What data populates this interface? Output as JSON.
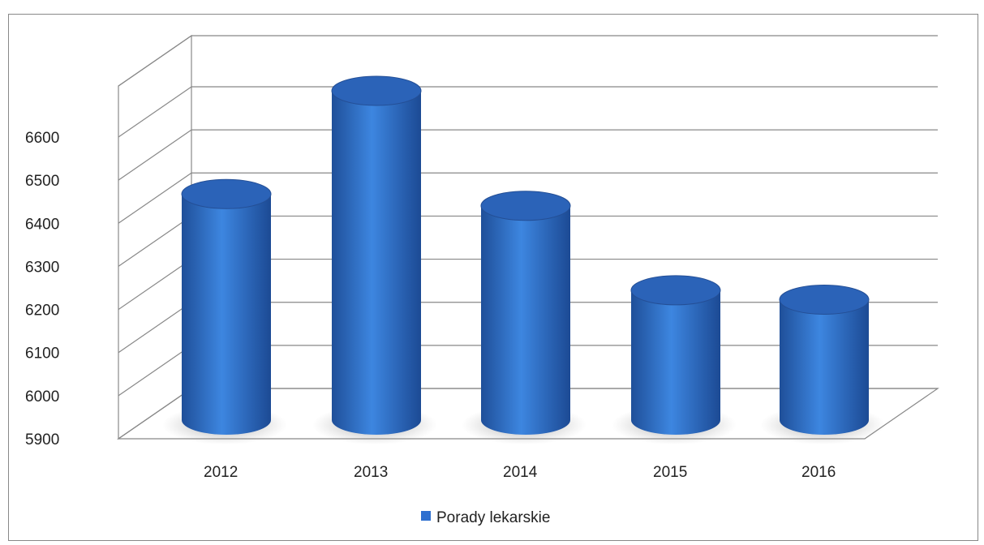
{
  "caption": "",
  "chart_data": {
    "type": "bar",
    "style": "3d-cylinder",
    "categories": [
      "2012",
      "2013",
      "2014",
      "2015",
      "2016"
    ],
    "series": [
      {
        "name": "Porady lekarskie",
        "values": [
          6380,
          6600,
          6355,
          6175,
          6155
        ],
        "color": "#2e6fcf"
      }
    ],
    "ylim": [
      5900,
      6600
    ],
    "yticks": [
      "5900",
      "6000",
      "6100",
      "6200",
      "6300",
      "6400",
      "6500",
      "6600"
    ],
    "grid": true,
    "legend": "bottom-center"
  }
}
